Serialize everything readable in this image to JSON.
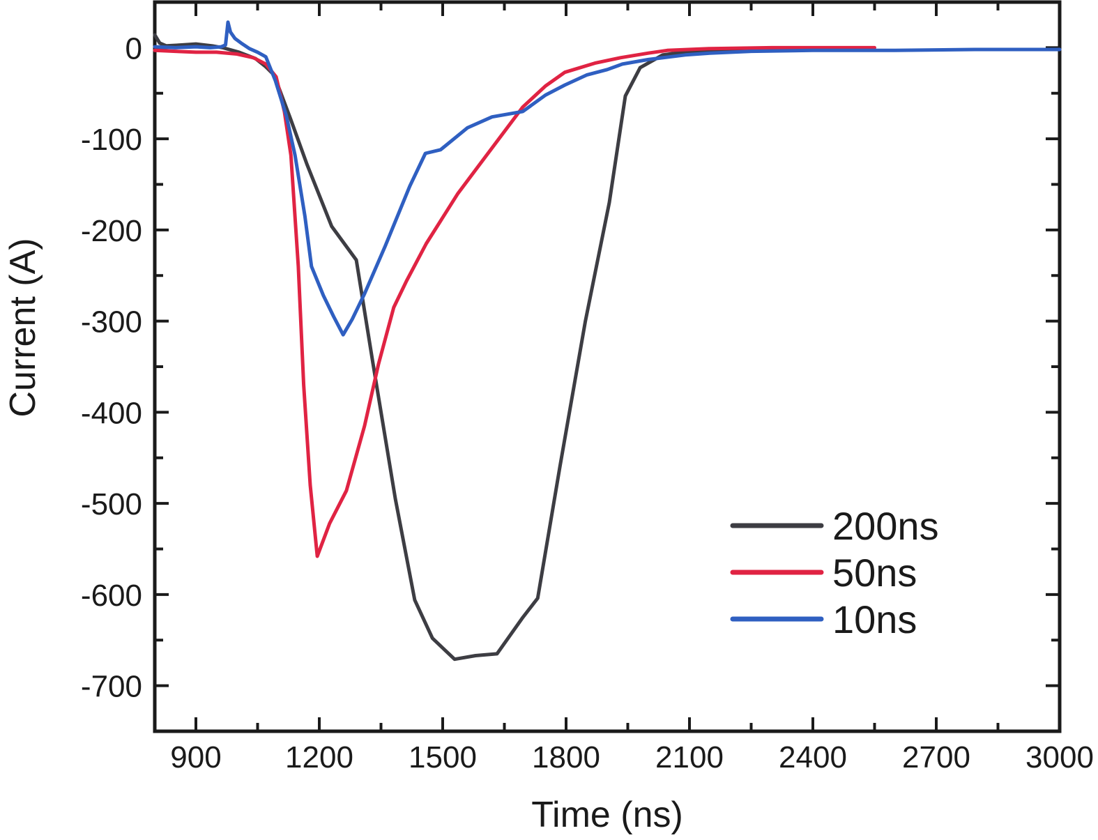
{
  "figure": {
    "background_color": "#ffffff",
    "frame_color": "#1a1a1a"
  },
  "chart_data": {
    "type": "line",
    "title": "",
    "xlabel": "Time (ns)",
    "ylabel": "Current (A)",
    "xlim": [
      800,
      3000
    ],
    "ylim": [
      -750,
      50
    ],
    "grid": false,
    "legend_position": "inside-lower-right",
    "x_major_ticks": [
      900,
      1200,
      1500,
      1800,
      2100,
      2400,
      2700,
      3000
    ],
    "x_minor_ticks": [
      1050,
      1350,
      1650,
      1950,
      2250,
      2550,
      2850
    ],
    "y_major_ticks": [
      0,
      -100,
      -200,
      -300,
      -400,
      -500,
      -600,
      -700
    ],
    "y_minor_ticks": [
      -50,
      -150,
      -250,
      -350,
      -450,
      -550,
      -650
    ],
    "series": [
      {
        "name": "200ns",
        "color": "#3d3d43",
        "points": [
          [
            800,
            14
          ],
          [
            812,
            5
          ],
          [
            828,
            2
          ],
          [
            865,
            3
          ],
          [
            900,
            4
          ],
          [
            940,
            2
          ],
          [
            965,
            0
          ],
          [
            1005,
            -5
          ],
          [
            1045,
            -12
          ],
          [
            1070,
            -21
          ],
          [
            1090,
            -30
          ],
          [
            1130,
            -78
          ],
          [
            1170,
            -128
          ],
          [
            1230,
            -196
          ],
          [
            1290,
            -233
          ],
          [
            1330,
            -345
          ],
          [
            1385,
            -495
          ],
          [
            1432,
            -606
          ],
          [
            1475,
            -648
          ],
          [
            1529,
            -671
          ],
          [
            1580,
            -667
          ],
          [
            1632,
            -665
          ],
          [
            1695,
            -625
          ],
          [
            1731,
            -604
          ],
          [
            1785,
            -460
          ],
          [
            1847,
            -300
          ],
          [
            1905,
            -170
          ],
          [
            1944,
            -53
          ],
          [
            1980,
            -22
          ],
          [
            2035,
            -8
          ],
          [
            2100,
            -4
          ],
          [
            2250,
            -2
          ],
          [
            2400,
            -2
          ],
          [
            2540,
            -2
          ]
        ]
      },
      {
        "name": "50ns",
        "color": "#e02343",
        "points": [
          [
            800,
            -3
          ],
          [
            850,
            -4
          ],
          [
            900,
            -5
          ],
          [
            950,
            -5
          ],
          [
            1000,
            -7
          ],
          [
            1040,
            -11
          ],
          [
            1070,
            -18
          ],
          [
            1095,
            -32
          ],
          [
            1115,
            -70
          ],
          [
            1131,
            -118
          ],
          [
            1149,
            -240
          ],
          [
            1162,
            -370
          ],
          [
            1178,
            -480
          ],
          [
            1195,
            -558
          ],
          [
            1225,
            -522
          ],
          [
            1266,
            -486
          ],
          [
            1310,
            -415
          ],
          [
            1344,
            -347
          ],
          [
            1381,
            -285
          ],
          [
            1412,
            -256
          ],
          [
            1460,
            -215
          ],
          [
            1537,
            -160
          ],
          [
            1620,
            -110
          ],
          [
            1695,
            -65
          ],
          [
            1750,
            -42
          ],
          [
            1797,
            -27
          ],
          [
            1870,
            -17
          ],
          [
            1932,
            -11
          ],
          [
            2000,
            -6
          ],
          [
            2046,
            -3
          ],
          [
            2150,
            -1
          ],
          [
            2300,
            0
          ],
          [
            2450,
            0
          ],
          [
            2550,
            0
          ]
        ]
      },
      {
        "name": "10ns",
        "color": "#2f5fc1",
        "points": [
          [
            800,
            1
          ],
          [
            850,
            0
          ],
          [
            900,
            1
          ],
          [
            935,
            0
          ],
          [
            962,
            1
          ],
          [
            972,
            3
          ],
          [
            978,
            28
          ],
          [
            984,
            17
          ],
          [
            995,
            10
          ],
          [
            1010,
            5
          ],
          [
            1030,
            -1
          ],
          [
            1050,
            -5
          ],
          [
            1070,
            -10
          ],
          [
            1093,
            -36
          ],
          [
            1120,
            -75
          ],
          [
            1141,
            -118
          ],
          [
            1165,
            -185
          ],
          [
            1181,
            -240
          ],
          [
            1210,
            -272
          ],
          [
            1235,
            -295
          ],
          [
            1258,
            -315
          ],
          [
            1280,
            -298
          ],
          [
            1310,
            -270
          ],
          [
            1360,
            -218
          ],
          [
            1420,
            -152
          ],
          [
            1458,
            -116
          ],
          [
            1495,
            -112
          ],
          [
            1560,
            -88
          ],
          [
            1620,
            -76
          ],
          [
            1695,
            -70
          ],
          [
            1750,
            -52
          ],
          [
            1797,
            -41
          ],
          [
            1850,
            -30
          ],
          [
            1900,
            -24
          ],
          [
            1937,
            -18
          ],
          [
            2000,
            -13
          ],
          [
            2090,
            -8
          ],
          [
            2150,
            -6
          ],
          [
            2250,
            -4
          ],
          [
            2400,
            -3
          ],
          [
            2600,
            -3
          ],
          [
            2800,
            -2
          ],
          [
            3000,
            -2
          ]
        ]
      }
    ],
    "legend": [
      "200ns",
      "50ns",
      "10ns"
    ]
  }
}
